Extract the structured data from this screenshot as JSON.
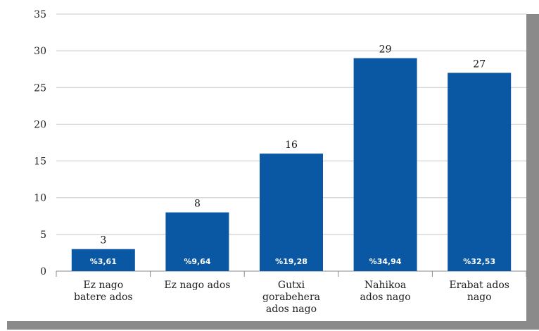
{
  "chart_data": {
    "type": "bar",
    "categories": [
      [
        "Ez nago",
        "batere ados"
      ],
      [
        "Ez nago ados"
      ],
      [
        "Gutxi",
        "gorabehera",
        "ados nago"
      ],
      [
        "Nahikoa",
        "ados nago"
      ],
      [
        "Erabat ados",
        "nago"
      ]
    ],
    "values": [
      3,
      8,
      16,
      29,
      27
    ],
    "percent_labels": [
      "%3,61",
      "%9,64",
      "%19,28",
      "%34,94",
      "%32,53"
    ],
    "ylim": [
      0,
      35
    ],
    "yticks": [
      0,
      5,
      10,
      15,
      20,
      25,
      30,
      35
    ],
    "grid": true,
    "bar_color": "#0a57a3"
  }
}
